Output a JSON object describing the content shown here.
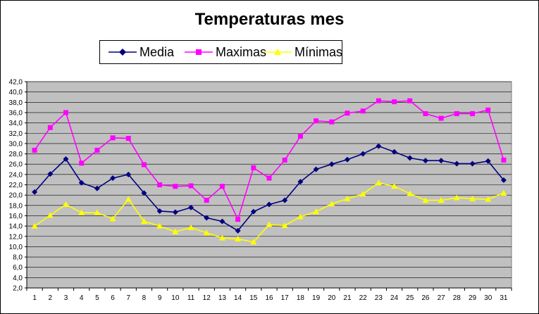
{
  "chart_data": {
    "type": "line",
    "title": "Temperaturas mes",
    "xlabel": "",
    "ylabel": "",
    "x": [
      1,
      2,
      3,
      4,
      5,
      6,
      7,
      8,
      9,
      10,
      11,
      12,
      13,
      14,
      15,
      16,
      17,
      18,
      19,
      20,
      21,
      22,
      23,
      24,
      25,
      26,
      27,
      28,
      29,
      30,
      31
    ],
    "ylim": [
      2,
      42
    ],
    "ytick_step": 2,
    "ytick_labels": [
      "2,0",
      "4,0",
      "6,0",
      "8,0",
      "10,0",
      "12,0",
      "14,0",
      "16,0",
      "18,0",
      "20,0",
      "22,0",
      "24,0",
      "26,0",
      "28,0",
      "30,0",
      "32,0",
      "34,0",
      "36,0",
      "38,0",
      "40,0",
      "42,0"
    ],
    "grid": true,
    "legend_position": "top-left",
    "plot_background": "#c0c0c0",
    "series": [
      {
        "name": "Media",
        "color": "#000080",
        "marker": "diamond",
        "values": [
          20.6,
          24.1,
          27.0,
          22.4,
          21.3,
          23.3,
          24.0,
          20.4,
          16.9,
          16.7,
          17.6,
          15.6,
          14.9,
          13.1,
          16.8,
          18.2,
          19.0,
          22.6,
          25.0,
          26.0,
          26.9,
          28.0,
          29.5,
          28.4,
          27.2,
          26.7,
          26.7,
          26.1,
          26.1,
          26.6,
          22.9
        ]
      },
      {
        "name": "Maximas",
        "color": "#ff00ff",
        "marker": "square",
        "values": [
          28.7,
          33.1,
          36.0,
          26.2,
          28.7,
          31.1,
          31.0,
          25.9,
          22.0,
          21.7,
          21.8,
          19.0,
          21.7,
          15.3,
          25.3,
          23.3,
          26.8,
          31.4,
          34.4,
          34.2,
          35.9,
          36.3,
          38.3,
          38.1,
          38.3,
          35.8,
          34.9,
          35.8,
          35.8,
          36.5,
          26.8
        ]
      },
      {
        "name": "Mínimas",
        "color": "#ffff00",
        "marker": "triangle",
        "values": [
          14.0,
          16.1,
          18.2,
          16.6,
          16.6,
          15.4,
          19.2,
          14.9,
          14.0,
          12.9,
          13.7,
          12.7,
          11.7,
          11.5,
          10.9,
          14.3,
          14.1,
          15.8,
          16.8,
          18.3,
          19.3,
          20.2,
          22.4,
          21.7,
          20.3,
          19.0,
          19.0,
          19.5,
          19.3,
          19.2,
          20.4
        ]
      }
    ]
  }
}
